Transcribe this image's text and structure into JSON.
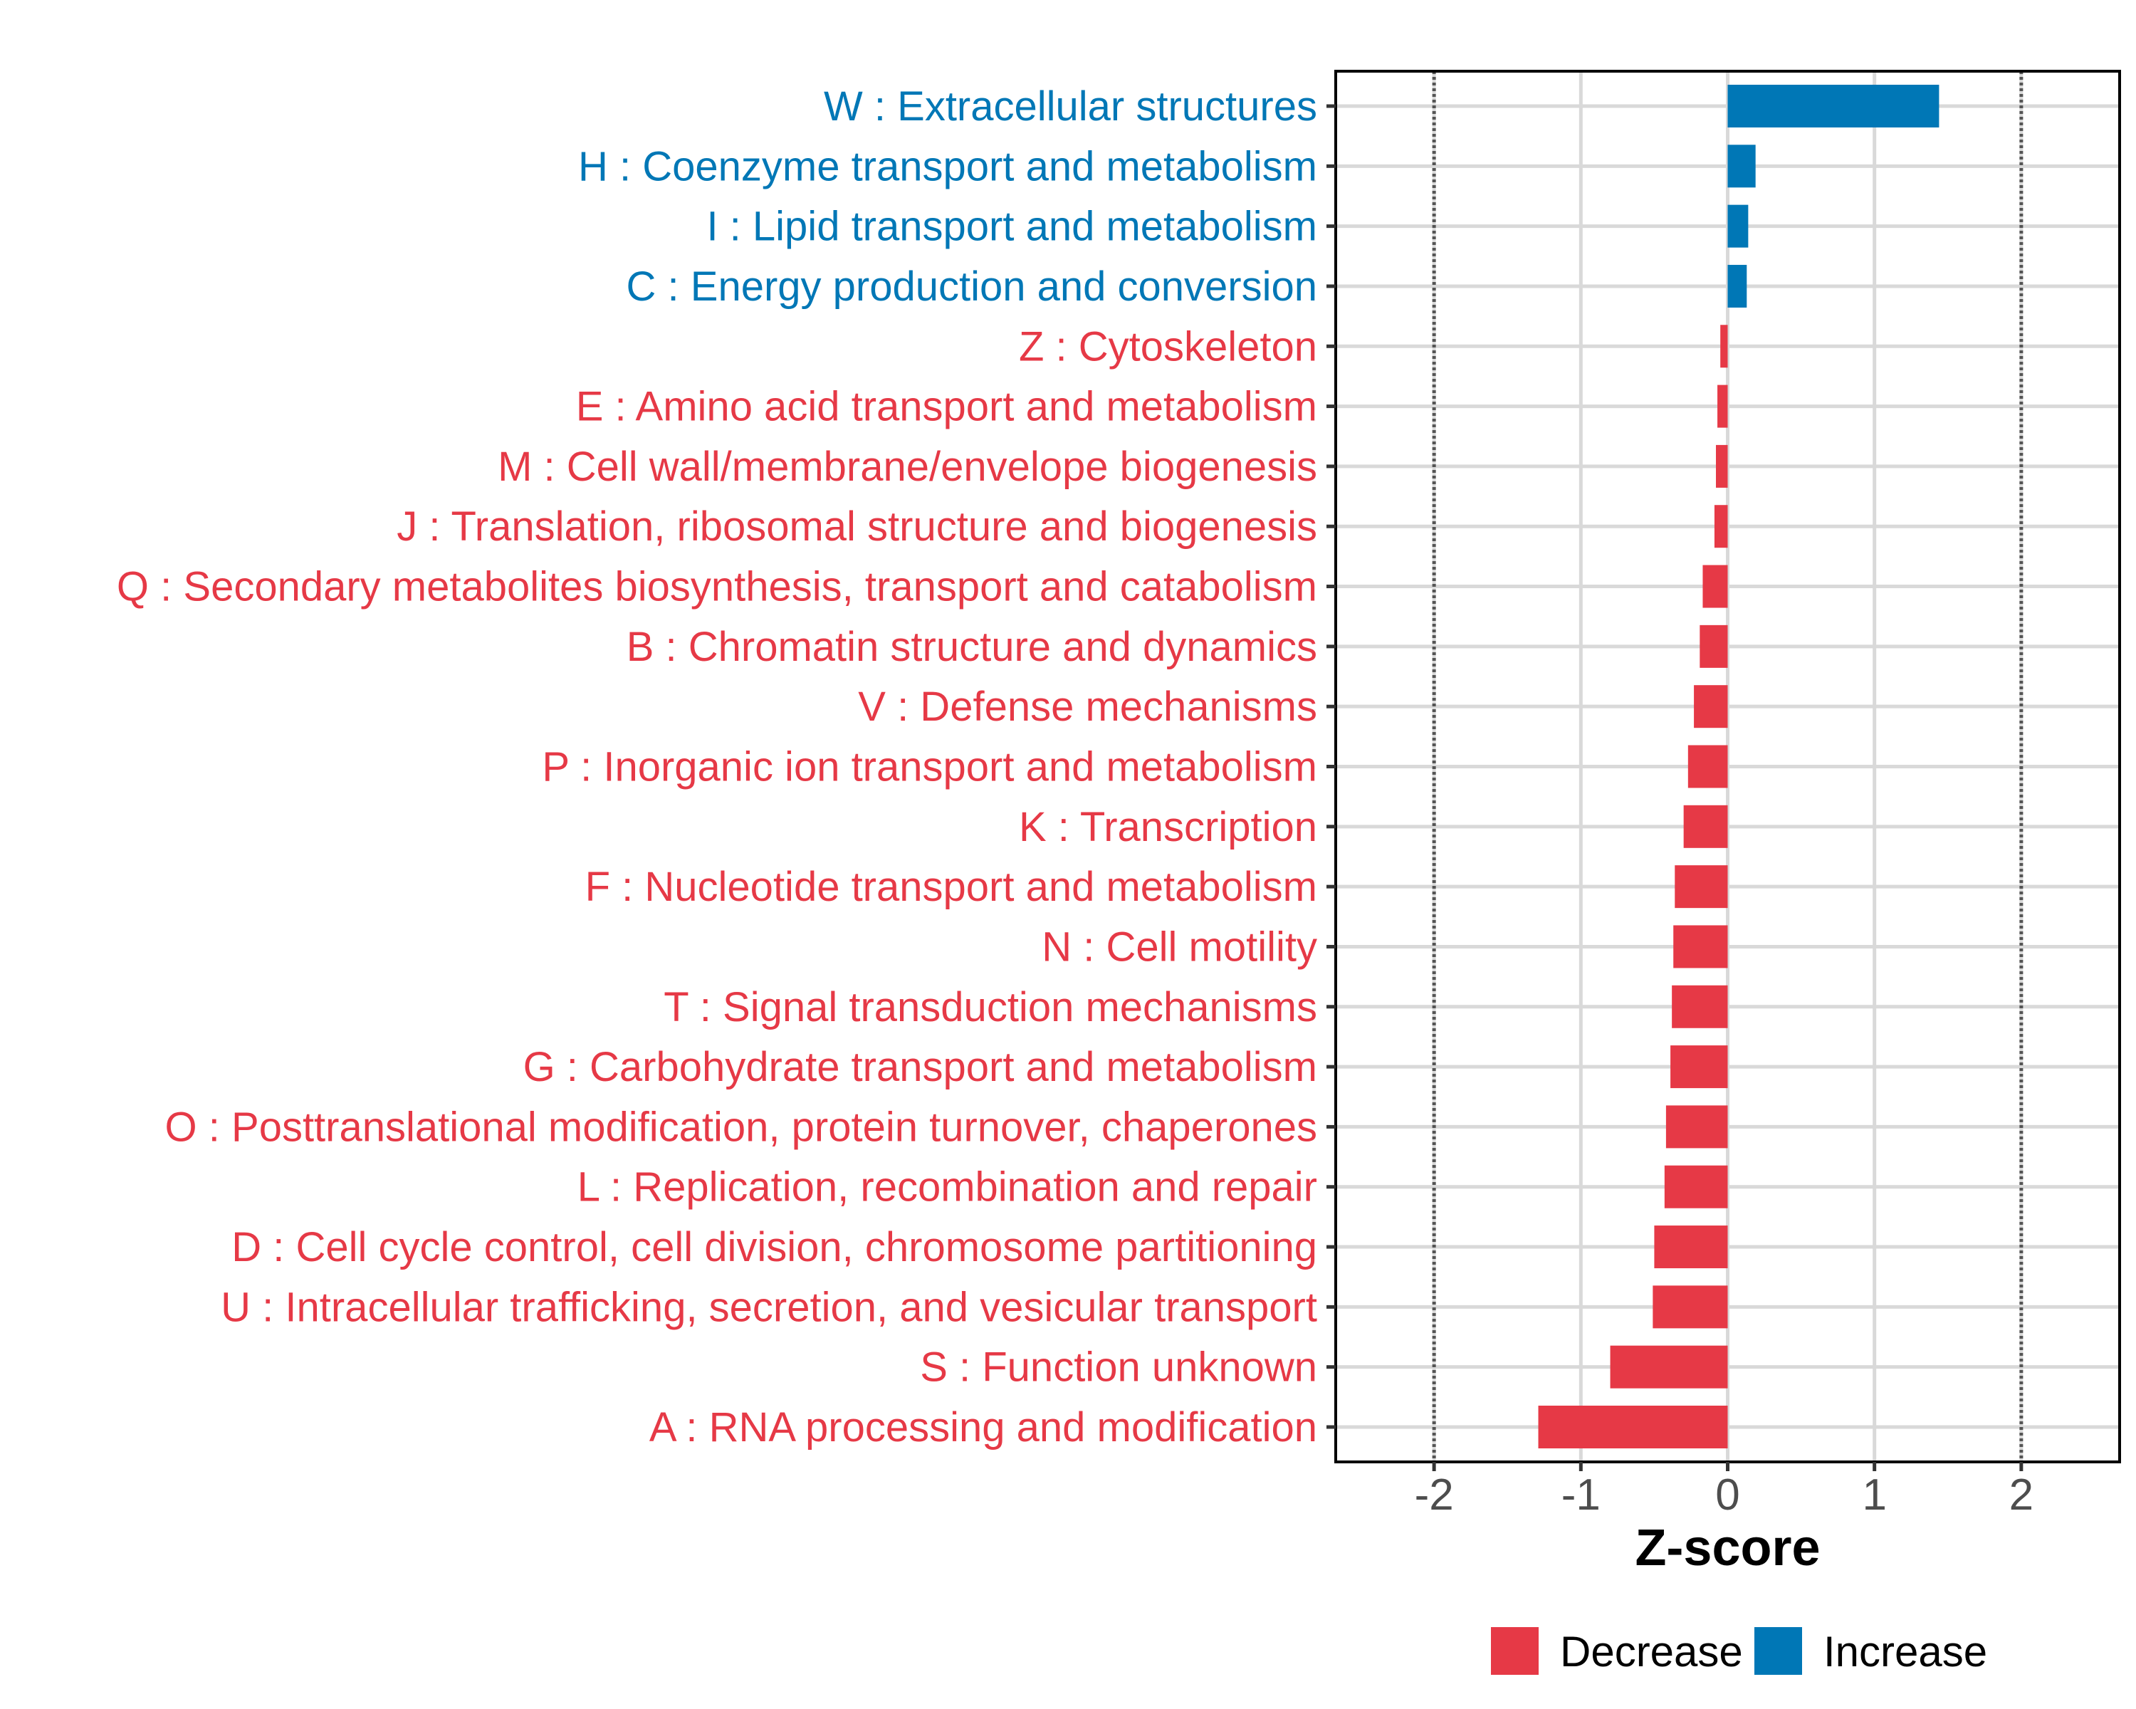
{
  "chart_data": {
    "type": "bar",
    "orientation": "horizontal",
    "title": "",
    "xlabel": "Z-score",
    "ylabel": "",
    "xlim": [
      -2.67,
      2.67
    ],
    "xticks": [
      -2,
      -1,
      0,
      1,
      2
    ],
    "xtick_labels": [
      "-2",
      "-1",
      "0",
      "1",
      "2"
    ],
    "reference_lines": [
      -2,
      2
    ],
    "grid": true,
    "legend_position": "bottom",
    "colors": {
      "Decrease": "#E63946",
      "Increase": "#0077B6"
    },
    "legend": [
      {
        "name": "Decrease",
        "color": "#E63946"
      },
      {
        "name": "Increase",
        "color": "#0077B6"
      }
    ],
    "categories": [
      "W : Extracellular structures",
      "H : Coenzyme transport and metabolism",
      "I : Lipid transport and metabolism",
      "C : Energy production and conversion",
      "Z : Cytoskeleton",
      "E : Amino acid transport and metabolism",
      "M : Cell wall/membrane/envelope biogenesis",
      "J : Translation, ribosomal structure and biogenesis",
      "Q : Secondary metabolites biosynthesis, transport and catabolism",
      "B : Chromatin structure and dynamics",
      "V : Defense mechanisms",
      "P : Inorganic ion transport and metabolism",
      "K : Transcription",
      "F : Nucleotide transport and metabolism",
      "N : Cell motility",
      "T : Signal transduction mechanisms",
      "G : Carbohydrate transport and metabolism",
      "O : Posttranslational modification, protein turnover, chaperones",
      "L : Replication, recombination and repair",
      "D : Cell cycle control, cell division, chromosome partitioning",
      "U : Intracellular trafficking, secretion, and vesicular transport",
      "S : Function unknown",
      "A : RNA processing and modification"
    ],
    "values": [
      1.44,
      0.19,
      0.14,
      0.13,
      -0.05,
      -0.07,
      -0.08,
      -0.09,
      -0.17,
      -0.19,
      -0.23,
      -0.27,
      -0.3,
      -0.36,
      -0.37,
      -0.38,
      -0.39,
      -0.42,
      -0.43,
      -0.5,
      -0.51,
      -0.8,
      -1.29
    ],
    "groups": [
      "Increase",
      "Increase",
      "Increase",
      "Increase",
      "Decrease",
      "Decrease",
      "Decrease",
      "Decrease",
      "Decrease",
      "Decrease",
      "Decrease",
      "Decrease",
      "Decrease",
      "Decrease",
      "Decrease",
      "Decrease",
      "Decrease",
      "Decrease",
      "Decrease",
      "Decrease",
      "Decrease",
      "Decrease",
      "Decrease"
    ]
  }
}
